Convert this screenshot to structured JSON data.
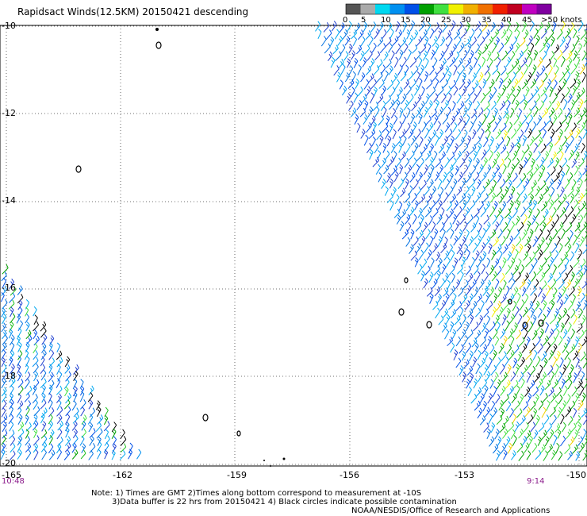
{
  "title": "Rapidsact Winds(12.5KM) 20150421 descending",
  "color_scale": {
    "labels": [
      "0",
      "5",
      "10",
      "15",
      "20",
      "25",
      "30",
      "35",
      "40",
      "45",
      ">50 knots"
    ],
    "colors": [
      "#555555",
      "#aaaaaa",
      "#00d8f0",
      "#0090f0",
      "#0050e8",
      "#00a000",
      "#40e040",
      "#f0f000",
      "#f0b000",
      "#f07000",
      "#f02000",
      "#c00020",
      "#c000c0",
      "#8000a0"
    ]
  },
  "latitude_labels": [
    "-10",
    "-12",
    "-14",
    "-16",
    "-18",
    "-20"
  ],
  "longitude_labels": [
    "-165",
    "-162",
    "-159",
    "-156",
    "-153",
    "-150"
  ],
  "time_labels": {
    "left": "10:48",
    "right": "9:14"
  },
  "notes": {
    "line1": "Note: 1) Times are GMT 2)Times along bottom correspond to measurement at -10S",
    "line2": "3)Data buffer is 22 hrs from 20150421 4) Black circles indicate possible contamination",
    "line3": "NOAA/NESDIS/Office of Research and Applications"
  }
}
